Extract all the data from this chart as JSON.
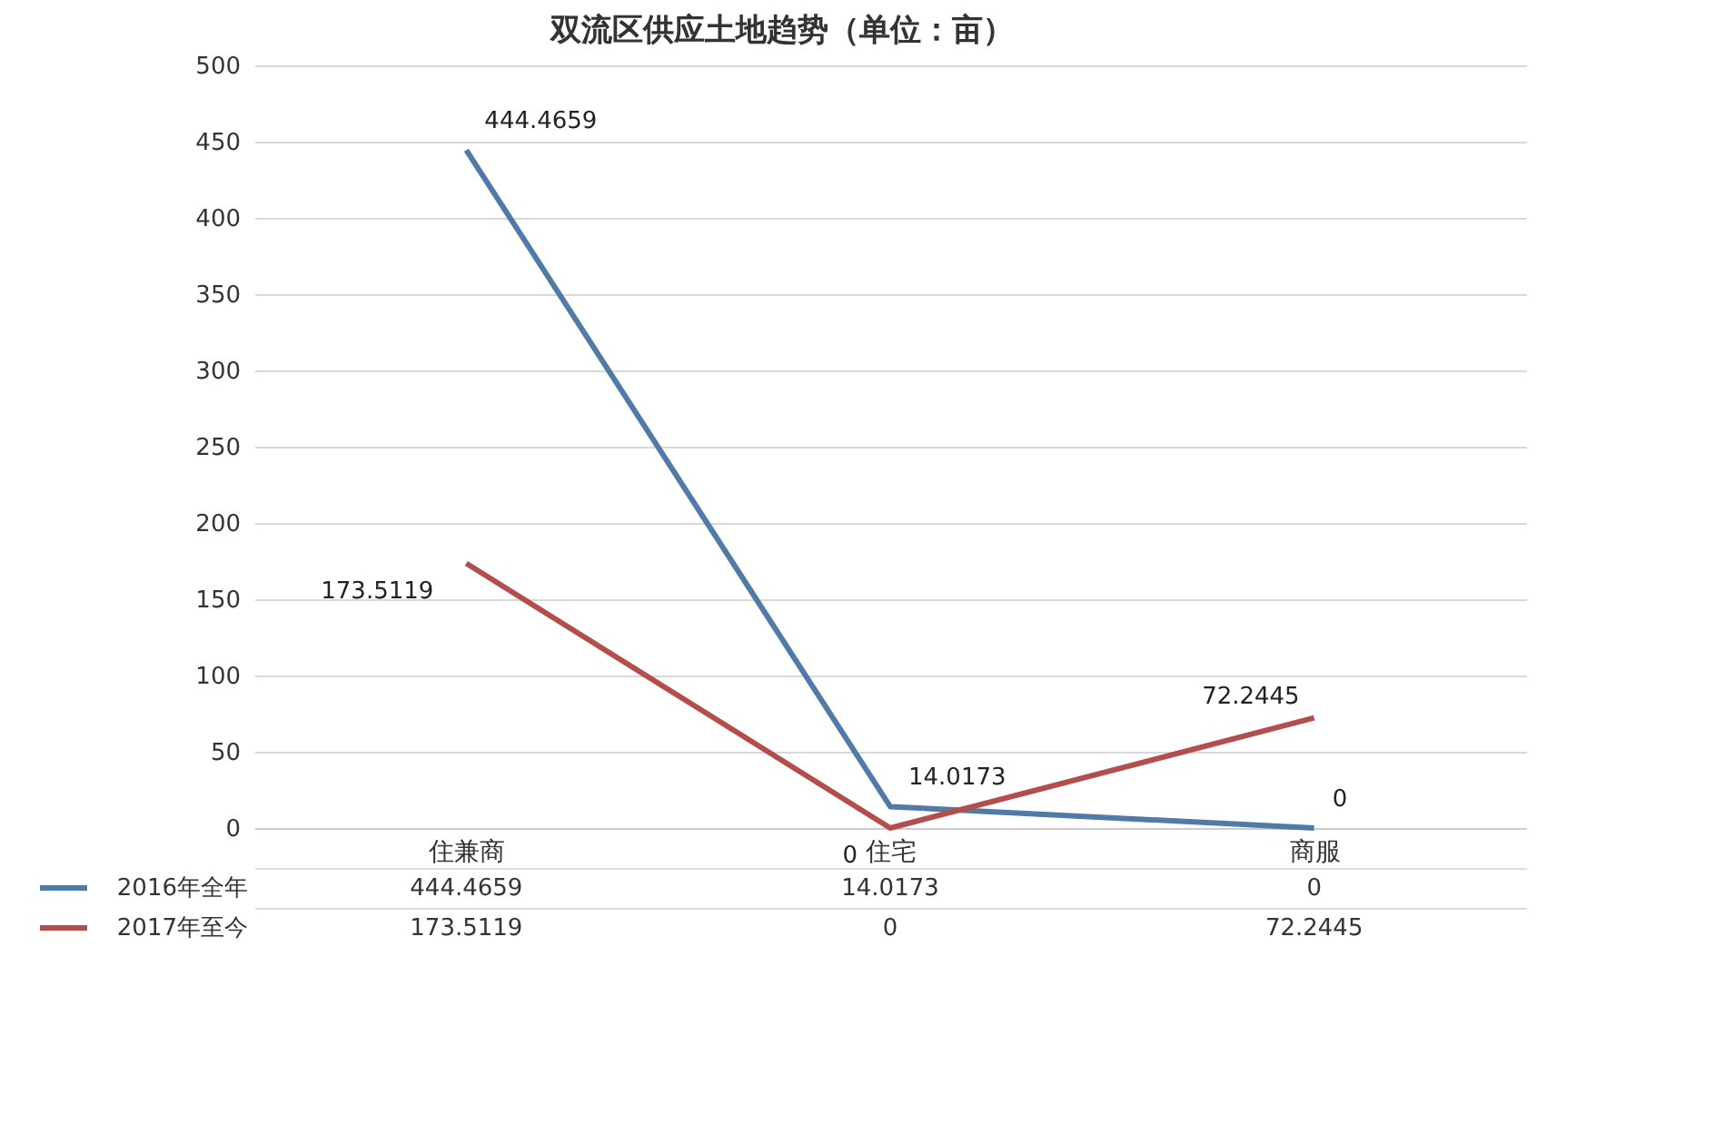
{
  "chart_data": {
    "type": "line",
    "title": "双流区供应土地趋势（单位：亩）",
    "categories": [
      "住兼商",
      "住宅",
      "商服"
    ],
    "series": [
      {
        "name": "2016年全年",
        "color": "#4f7ba6",
        "values": [
          444.4659,
          14.0173,
          0
        ]
      },
      {
        "name": "2017年至今",
        "color": "#b24e4c",
        "values": [
          173.5119,
          0,
          72.2445
        ]
      }
    ],
    "annotations": [
      {
        "text": "444.4659",
        "x": "住兼商",
        "y": 444.4659
      },
      {
        "text": "14.0173",
        "x": "住宅",
        "y": 14.0173
      },
      {
        "text": "0",
        "x": "商服",
        "y": 0
      },
      {
        "text": "173.5119",
        "x": "住兼商",
        "y": 173.5119
      },
      {
        "text": "0",
        "x": "住宅",
        "y": 0
      },
      {
        "text": "72.2445",
        "x": "商服",
        "y": 72.2445
      }
    ],
    "ylim": [
      0,
      500
    ],
    "yticks": [
      0,
      50,
      100,
      150,
      200,
      250,
      300,
      350,
      400,
      450,
      500
    ],
    "grid": "y",
    "legend": "bottom",
    "data_labels": true,
    "marker": "none",
    "line_style": "solid"
  }
}
